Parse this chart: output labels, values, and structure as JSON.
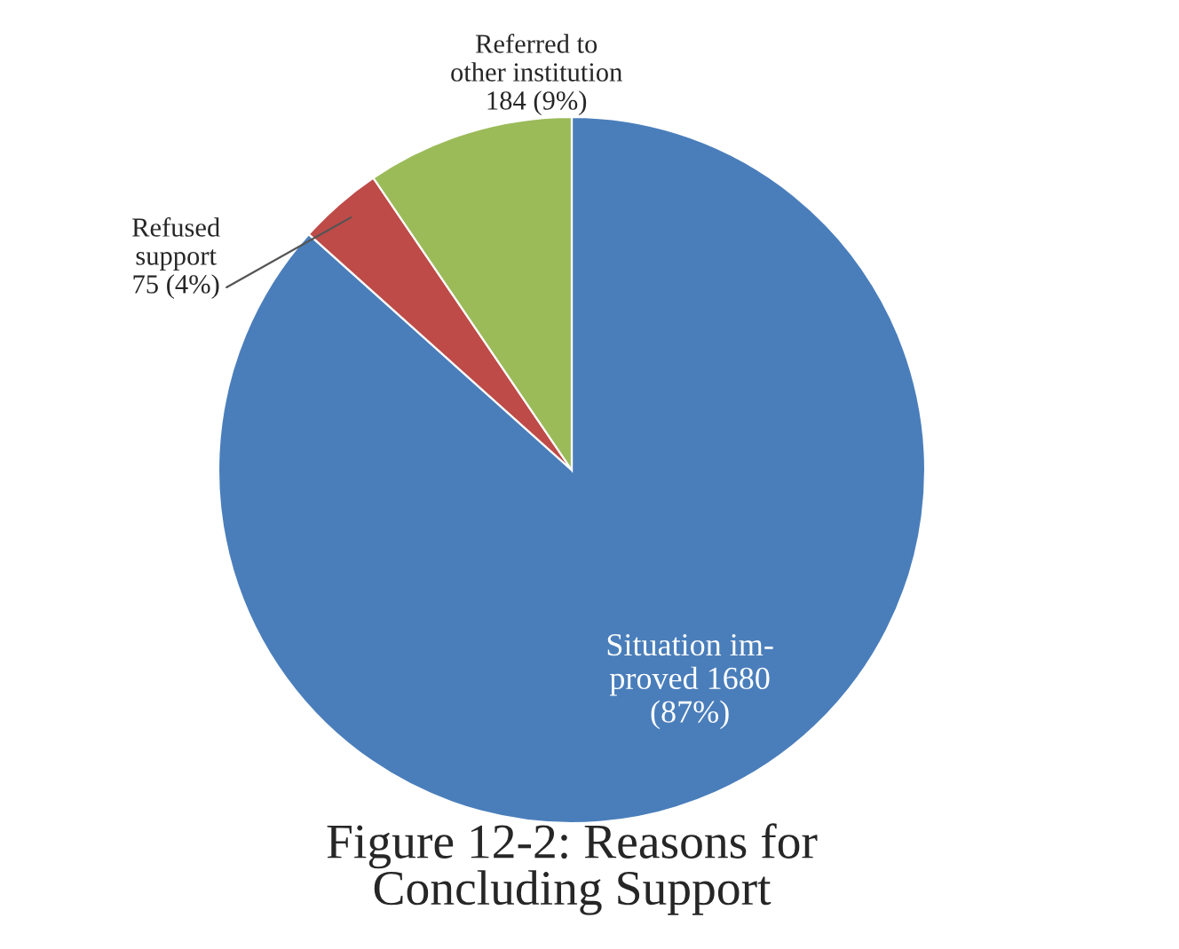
{
  "chart_data": {
    "type": "pie",
    "title": "Figure 12-2: Reasons for\nConcluding Support",
    "categories": [
      "Situation im-\nproved 1680\n(87%)",
      "Refused\nsupport\n75 (4%)",
      "Referred to\nother institution\n184 (9%)"
    ],
    "values": [
      1680,
      75,
      184
    ],
    "colors": [
      "#4a7ebb",
      "#be4b48",
      "#9bbb59"
    ]
  }
}
